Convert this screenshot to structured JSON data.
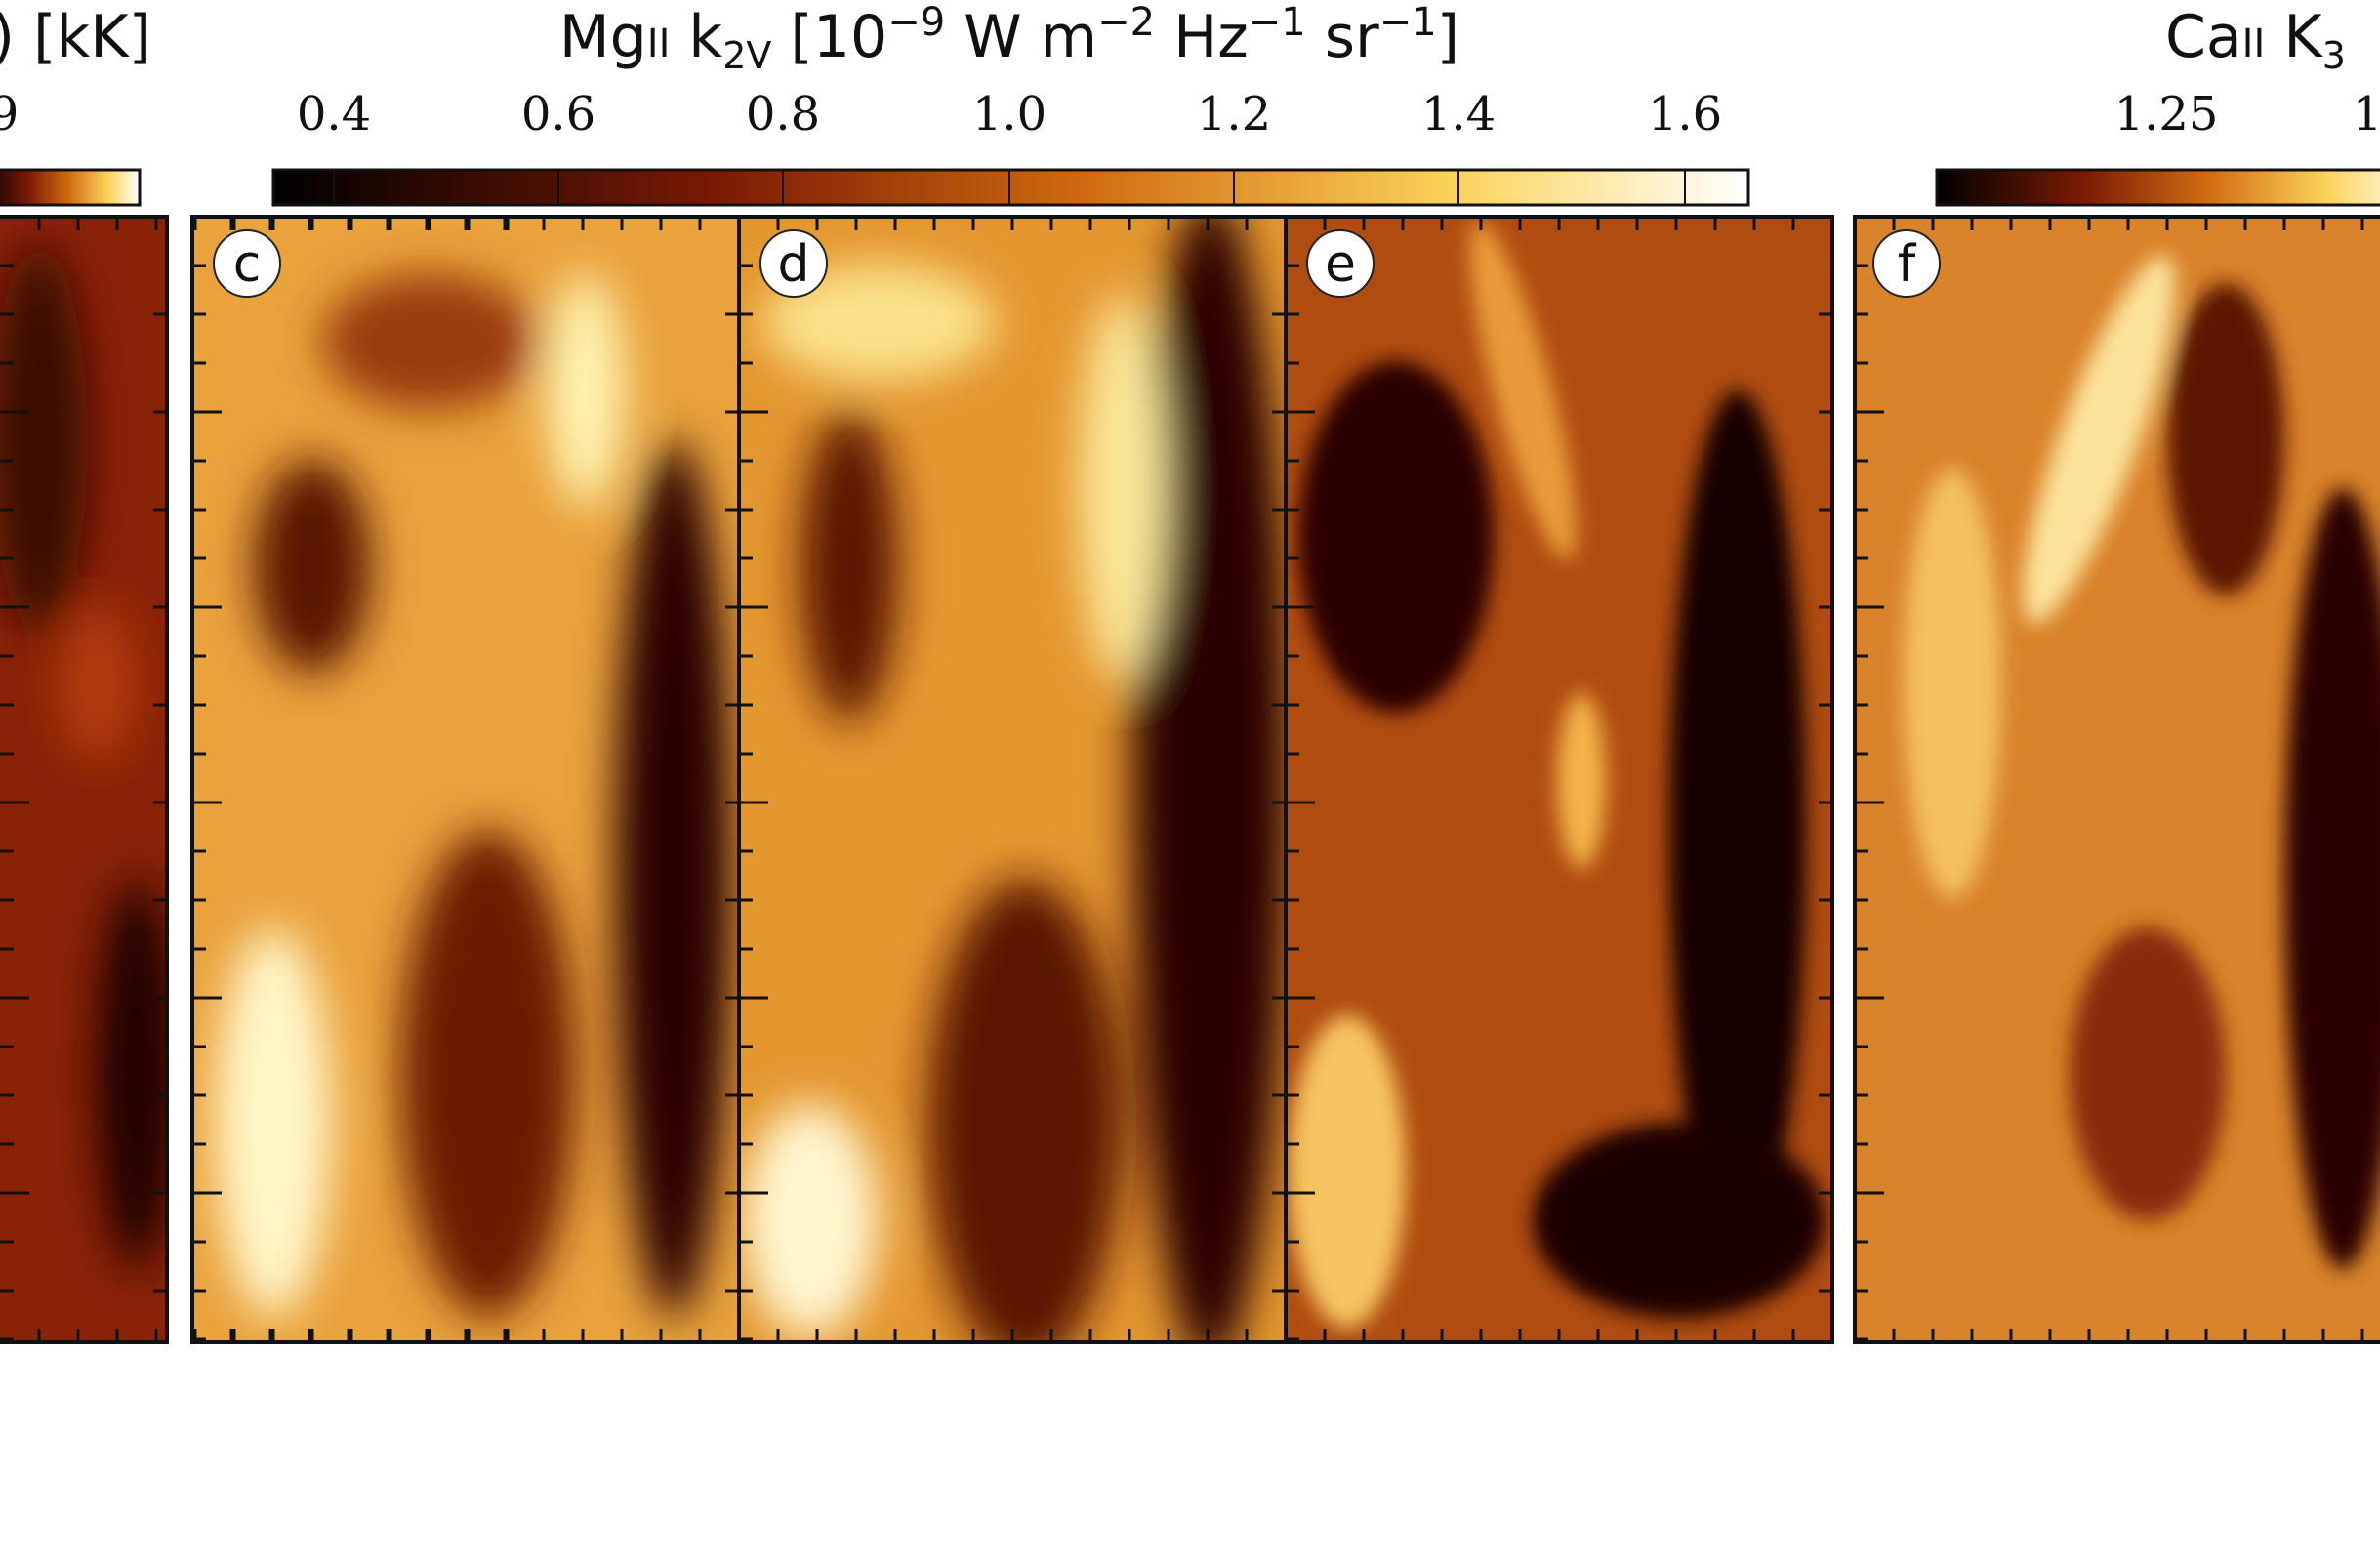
{
  "left_colorbar": {
    "label": ") [kK]",
    "ticks": [
      "9"
    ]
  },
  "center_colorbar": {
    "label": {
      "element": "Mg",
      "ion": "II",
      "line": " k",
      "sub": "2V",
      "unit_a": " [10",
      "exp_a": "−9",
      "unit_b": " W m",
      "exp_b": "−2",
      "unit_c": " Hz",
      "exp_c": "−1",
      "unit_d": " sr",
      "exp_d": "−1",
      "unit_e": "]"
    },
    "ticks": [
      "0.4",
      "0.6",
      "0.8",
      "1.0",
      "1.2",
      "1.4",
      "1.6"
    ]
  },
  "right_colorbar": {
    "label": {
      "element": "Ca",
      "ion": "II",
      "line": " K",
      "sub": "3"
    },
    "ticks": [
      "1.25",
      "1"
    ]
  },
  "panels": [
    "c",
    "d",
    "e",
    "f"
  ]
}
